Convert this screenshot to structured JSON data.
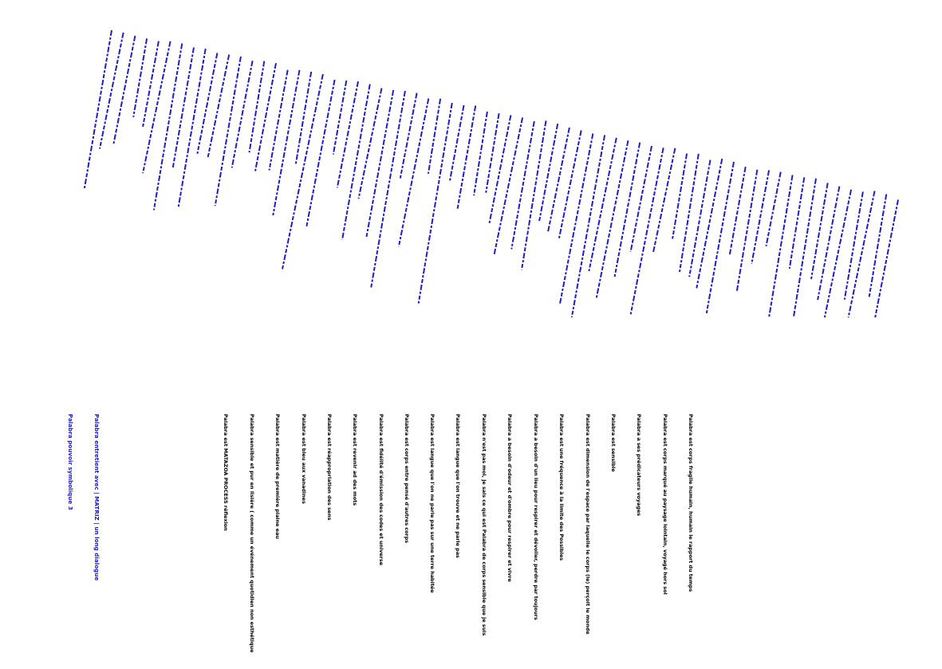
{
  "colors": {
    "background": "#ffffff",
    "accent": "#1a1ad6",
    "text": "#000000",
    "line": "#1e1ec8"
  },
  "headings": [
    "Palabra pouvoir symbolique 3",
    "Palabra entretient avec | MATRIZ | un long dialogue"
  ],
  "statements": [
    "Palabra est MATAZOA PROCESS réflexion",
    "Palabra sensible et pur en lisière ( comme un événement quotidien non esthétique",
    "Palabra est matière de première plaine eau",
    "Palabra est bleu aux vanadines",
    "Palabra est réappropriation des sens",
    "Palabra est revenir ad des mots",
    "Palabra est fidélité d'émission des codes et universe",
    "Palabra est corps entre pensé d'autres corps",
    "Palabra est langue que l'on ne parle pas sur une terre habitée",
    "Palabra est langue que l'on trouve et ne parle pas",
    "Palabra n'est pas moi, je sais ce qui est Palabra de corps sensible que je suis",
    "Palabra a besoin d'odeur et d'ombre pour respirer et vivre",
    "Palabra a besoin d'un lieu pour respirer et dévoiler, perdre par toujours",
    "Palabra est une fréquence à la limite des Possibles",
    "Palabra est dimension de l'espace par laquelle le corps (le) perçoit le monde",
    "Palabra est sensible",
    "Palabra a ses prédicateurs voyages",
    "Palabra est corps marqué au paysage lointain, voyagé hors sol",
    "Palabra est corps fragile humain, humain le rapport du temps"
  ]
}
